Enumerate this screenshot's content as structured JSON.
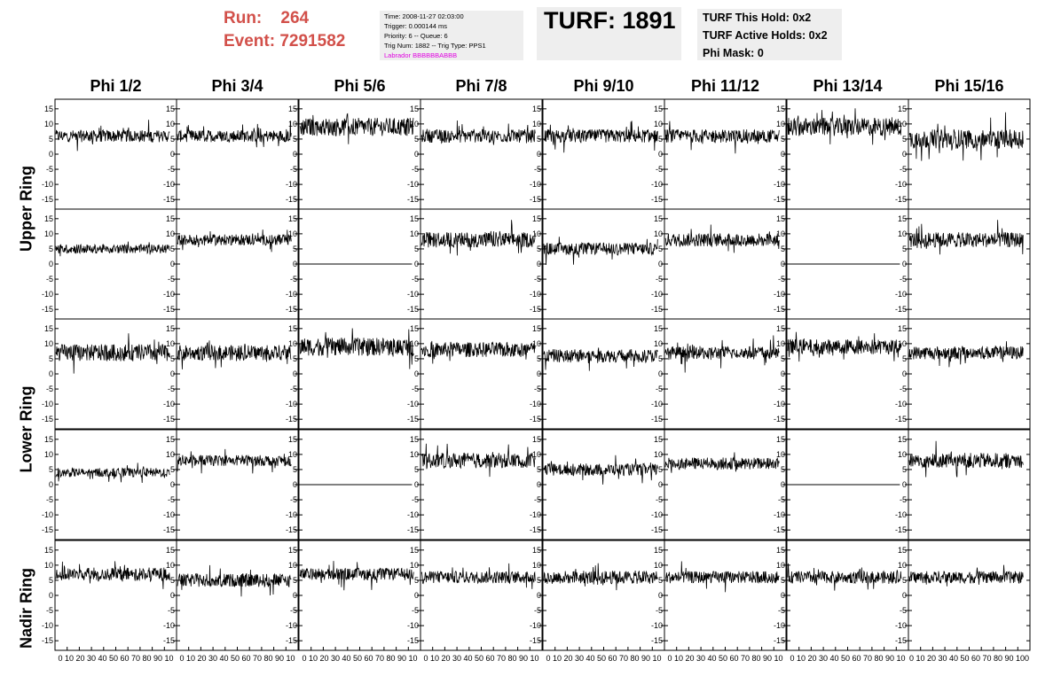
{
  "header": {
    "run_label": "Run:",
    "run_value": "264",
    "event_label": "Event:",
    "event_value": "7291582",
    "info_lines": [
      "Time: 2008-11-27 02:03:00",
      "Trigger: 0.000144 ms",
      "Priority: 6 -- Queue: 6",
      "Trig Num: 1882 -- Trig Type: PPS1"
    ],
    "labrador_line": "Labrador BBBBBBABBB",
    "turf_title": "TURF: 1891",
    "turf_lines": [
      "TURF This Hold: 0x2",
      "TURF Active Holds: 0x2",
      "Phi Mask: 0"
    ]
  },
  "colors": {
    "run_text": "#d2504a",
    "labrador_text": "#e000e0",
    "box_bg": "#eeeeee",
    "trace": "#000000"
  },
  "chart_data": {
    "type": "line",
    "columns": [
      "Phi 1/2",
      "Phi 3/4",
      "Phi 5/6",
      "Phi 7/8",
      "Phi 9/10",
      "Phi 11/12",
      "Phi 13/14",
      "Phi 15/16"
    ],
    "row_groups": [
      "Upper Ring",
      "Lower Ring",
      "Nadir Ring"
    ],
    "xlim": [
      0,
      100
    ],
    "ylim": [
      -17,
      17
    ],
    "y_ticks": [
      -15,
      -10,
      -5,
      0,
      5,
      10,
      15
    ],
    "x_ticks": [
      0,
      10,
      20,
      30,
      40,
      50,
      60,
      70,
      80,
      90,
      100
    ],
    "bottom_axis_label": "0 10 20 30 40 50 60 70 80 90 10",
    "bottom_axis_label_last": "0 10 20 30 40 50 60 70 80 90 100",
    "panels": [
      {
        "row": 0,
        "col": 0,
        "baseline": 6,
        "noise": 2.0,
        "flat": false
      },
      {
        "row": 0,
        "col": 1,
        "baseline": 6,
        "noise": 2.0,
        "flat": false
      },
      {
        "row": 0,
        "col": 2,
        "baseline": 9,
        "noise": 3.0,
        "flat": false
      },
      {
        "row": 0,
        "col": 3,
        "baseline": 6,
        "noise": 2.2,
        "flat": false
      },
      {
        "row": 0,
        "col": 4,
        "baseline": 6,
        "noise": 2.2,
        "flat": false
      },
      {
        "row": 0,
        "col": 5,
        "baseline": 6,
        "noise": 2.2,
        "flat": false
      },
      {
        "row": 0,
        "col": 6,
        "baseline": 9,
        "noise": 3.0,
        "flat": false
      },
      {
        "row": 0,
        "col": 7,
        "baseline": 5,
        "noise": 3.2,
        "flat": false
      },
      {
        "row": 1,
        "col": 0,
        "baseline": 5,
        "noise": 1.5,
        "flat": false
      },
      {
        "row": 1,
        "col": 1,
        "baseline": 8,
        "noise": 1.8,
        "flat": false
      },
      {
        "row": 1,
        "col": 2,
        "baseline": 0,
        "noise": 0,
        "flat": true
      },
      {
        "row": 1,
        "col": 3,
        "baseline": 8,
        "noise": 2.5,
        "flat": false
      },
      {
        "row": 1,
        "col": 4,
        "baseline": 5,
        "noise": 2.0,
        "flat": false
      },
      {
        "row": 1,
        "col": 5,
        "baseline": 8,
        "noise": 2.2,
        "flat": false
      },
      {
        "row": 1,
        "col": 6,
        "baseline": 0,
        "noise": 0,
        "flat": true
      },
      {
        "row": 1,
        "col": 7,
        "baseline": 8,
        "noise": 2.5,
        "flat": false
      },
      {
        "row": 2,
        "col": 0,
        "baseline": 7,
        "noise": 2.8,
        "flat": false
      },
      {
        "row": 2,
        "col": 1,
        "baseline": 7,
        "noise": 2.5,
        "flat": false
      },
      {
        "row": 2,
        "col": 2,
        "baseline": 9,
        "noise": 3.0,
        "flat": false
      },
      {
        "row": 2,
        "col": 3,
        "baseline": 8,
        "noise": 2.5,
        "flat": false
      },
      {
        "row": 2,
        "col": 4,
        "baseline": 6,
        "noise": 2.2,
        "flat": false
      },
      {
        "row": 2,
        "col": 5,
        "baseline": 7,
        "noise": 2.2,
        "flat": false
      },
      {
        "row": 2,
        "col": 6,
        "baseline": 9,
        "noise": 2.5,
        "flat": false
      },
      {
        "row": 2,
        "col": 7,
        "baseline": 7,
        "noise": 2.2,
        "flat": false
      },
      {
        "row": 3,
        "col": 0,
        "baseline": 4,
        "noise": 1.5,
        "flat": false
      },
      {
        "row": 3,
        "col": 1,
        "baseline": 8,
        "noise": 1.8,
        "flat": false
      },
      {
        "row": 3,
        "col": 2,
        "baseline": 0,
        "noise": 0,
        "flat": true
      },
      {
        "row": 3,
        "col": 3,
        "baseline": 8,
        "noise": 2.5,
        "flat": false
      },
      {
        "row": 3,
        "col": 4,
        "baseline": 5,
        "noise": 2.0,
        "flat": false
      },
      {
        "row": 3,
        "col": 5,
        "baseline": 7,
        "noise": 2.0,
        "flat": false
      },
      {
        "row": 3,
        "col": 6,
        "baseline": 0,
        "noise": 0,
        "flat": true
      },
      {
        "row": 3,
        "col": 7,
        "baseline": 8,
        "noise": 2.5,
        "flat": false
      },
      {
        "row": 4,
        "col": 0,
        "baseline": 7,
        "noise": 2.2,
        "flat": false
      },
      {
        "row": 4,
        "col": 1,
        "baseline": 5,
        "noise": 2.2,
        "flat": false
      },
      {
        "row": 4,
        "col": 2,
        "baseline": 7,
        "noise": 2.0,
        "flat": false
      },
      {
        "row": 4,
        "col": 3,
        "baseline": 6,
        "noise": 2.0,
        "flat": false
      },
      {
        "row": 4,
        "col": 4,
        "baseline": 6,
        "noise": 2.2,
        "flat": false
      },
      {
        "row": 4,
        "col": 5,
        "baseline": 6,
        "noise": 2.0,
        "flat": false
      },
      {
        "row": 4,
        "col": 6,
        "baseline": 6,
        "noise": 2.0,
        "flat": false
      },
      {
        "row": 4,
        "col": 7,
        "baseline": 6,
        "noise": 2.0,
        "flat": false
      }
    ]
  }
}
